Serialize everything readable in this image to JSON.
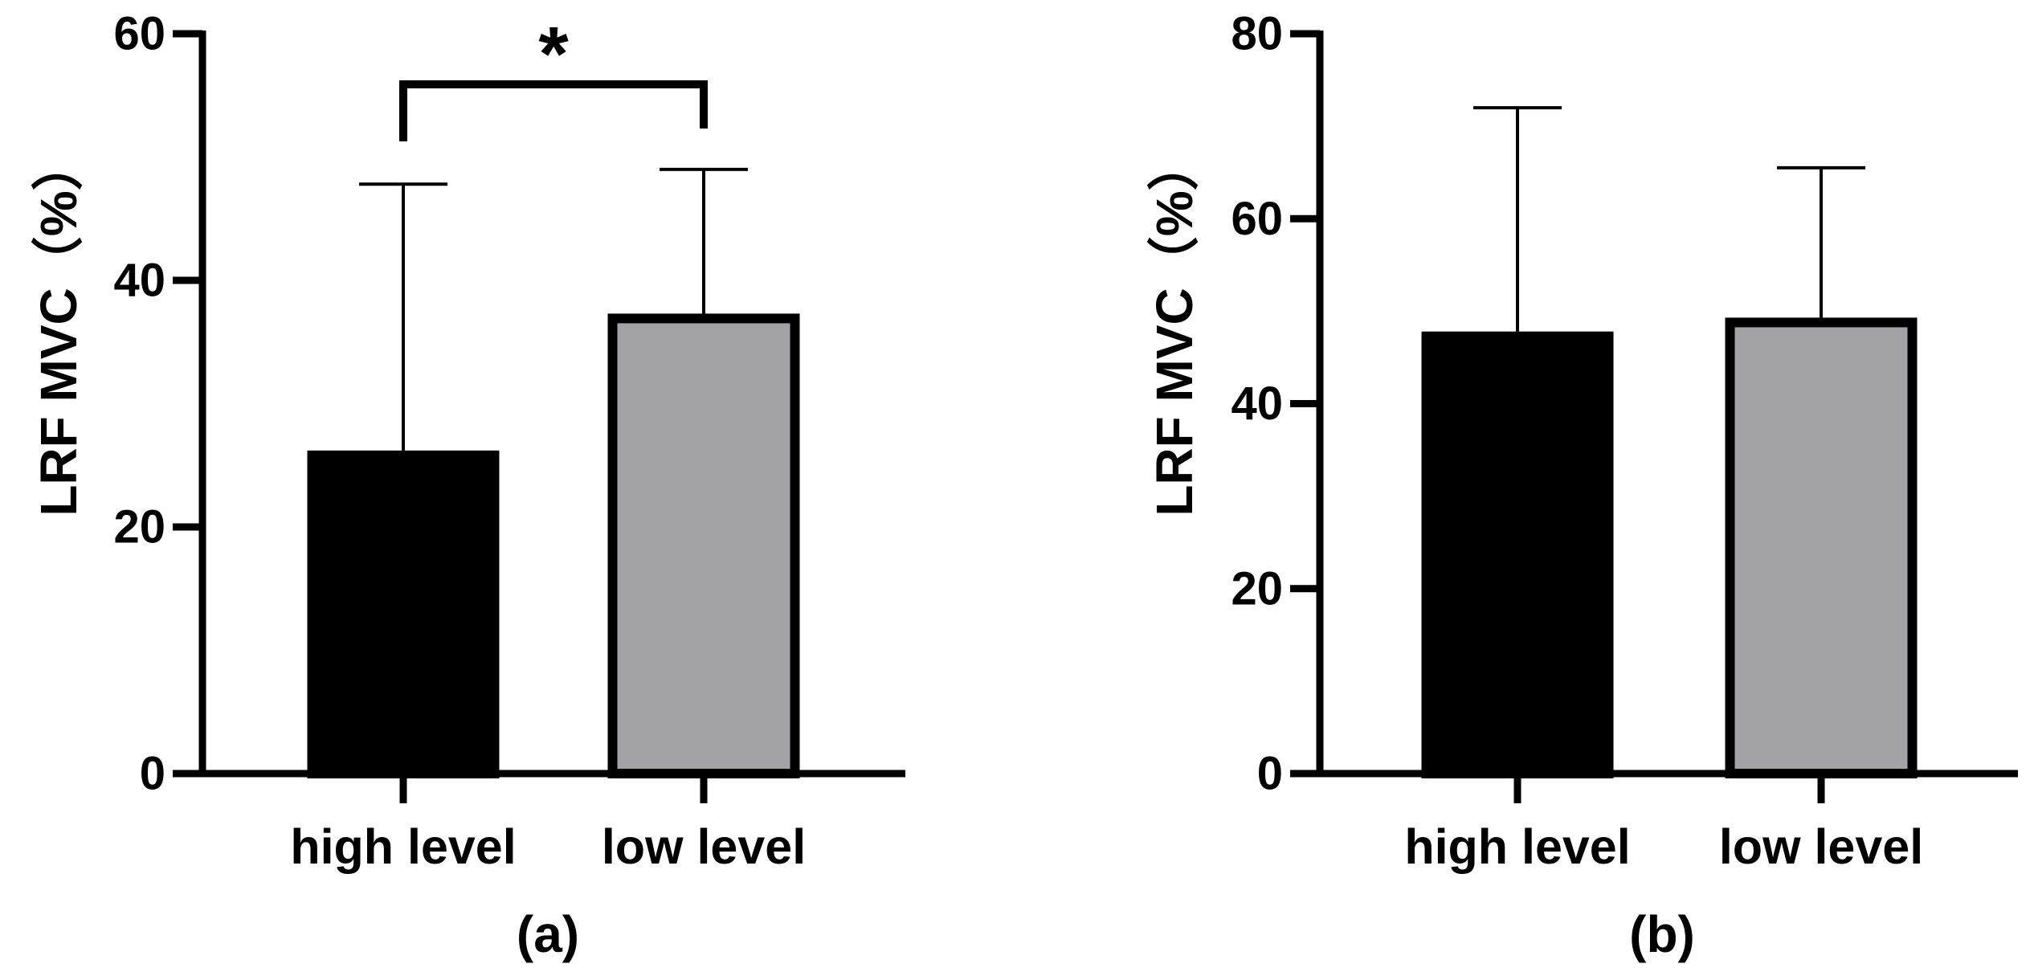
{
  "chart_data": [
    {
      "type": "bar",
      "panel_label": "(a)",
      "ylabel": "LRF MVC（%）",
      "xlabel": "",
      "categories": [
        "high level",
        "low level"
      ],
      "values": [
        26.2,
        37.3
      ],
      "error_upper": [
        47.8,
        49.0
      ],
      "ylim": [
        0,
        60
      ],
      "yticks": [
        "0",
        "20",
        "40",
        "60"
      ],
      "colors": [
        "#000000",
        "#a3a3a7"
      ],
      "significance": {
        "between": [
          "high level",
          "low level"
        ],
        "label": "*"
      }
    },
    {
      "type": "bar",
      "panel_label": "(b)",
      "ylabel": "LRF MVC（%）",
      "xlabel": "",
      "categories": [
        "high level",
        "low level"
      ],
      "values": [
        47.8,
        49.3
      ],
      "error_upper": [
        72.0,
        65.5
      ],
      "ylim": [
        0,
        80
      ],
      "yticks": [
        "0",
        "20",
        "40",
        "60",
        "80"
      ],
      "colors": [
        "#000000",
        "#a3a3a7"
      ]
    }
  ]
}
